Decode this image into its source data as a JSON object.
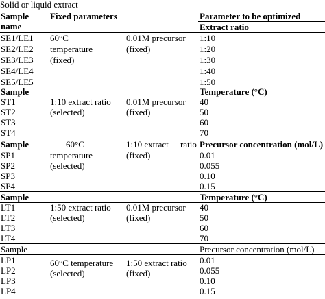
{
  "caption": "Solid or liquid extract",
  "header": {
    "col1_line1": "Sample",
    "col1_line2": "name",
    "col2": "Fixed parameters",
    "col4_line1": "Parameter to be optimized",
    "col4_line2": "Extract ratio"
  },
  "se": {
    "rows": [
      "SE1/LE1",
      "SE2/LE2",
      "SE3/LE3",
      "SE4/LE4",
      "SE5/LE5"
    ],
    "fixed_a": [
      "60°C",
      "temperature",
      "(fixed)"
    ],
    "fixed_b": "0.01M precursor",
    "fixed_b2": "(fixed)",
    "values": [
      "1:10",
      "1:20",
      "1:30",
      "1:40",
      "1:50"
    ]
  },
  "st": {
    "header_sample": "Sample",
    "header_param": "Temperature (°C)",
    "rows": [
      "ST1",
      "ST2",
      "ST3",
      "ST4"
    ],
    "fixed_a": [
      "1:10 extract ratio",
      "(selected)"
    ],
    "fixed_b": [
      "0.01M precursor",
      "(fixed)"
    ],
    "values": [
      "40",
      "50",
      "60",
      "70"
    ]
  },
  "sp": {
    "header_sample": "Sample",
    "header_param": "Precursor concentration (mol/L)",
    "rows": [
      "SP1",
      "SP2",
      "SP3",
      "SP4"
    ],
    "fixed_a": [
      "60°C",
      "temperature",
      "(selected)"
    ],
    "fixed_b": [
      "1:10 extract",
      "ratio",
      "(fixed)"
    ],
    "values": [
      "0.01",
      "0.055",
      "0.10",
      "0.15"
    ]
  },
  "lt": {
    "header_sample": "Sample",
    "header_param": "Temperature (°C)",
    "rows": [
      "LT1",
      "LT2",
      "LT3",
      "LT4"
    ],
    "fixed_a": [
      "1:50 extract ratio",
      "(selected)"
    ],
    "fixed_b": [
      "0.01M precursor",
      "(fixed)"
    ],
    "values": [
      "40",
      "50",
      "60",
      "70"
    ]
  },
  "lp": {
    "header_sample": "Sample",
    "header_param": "Precursor concentration (mol/L)",
    "rows": [
      "LP1",
      "LP2",
      "LP3",
      "LP4"
    ],
    "fixed_a": [
      "60°C temperature",
      "(selected)"
    ],
    "fixed_b": [
      "1:50 extract ratio",
      "(fixed)"
    ],
    "values": [
      "0.01",
      "0.055",
      "0.10",
      "0.15"
    ]
  }
}
